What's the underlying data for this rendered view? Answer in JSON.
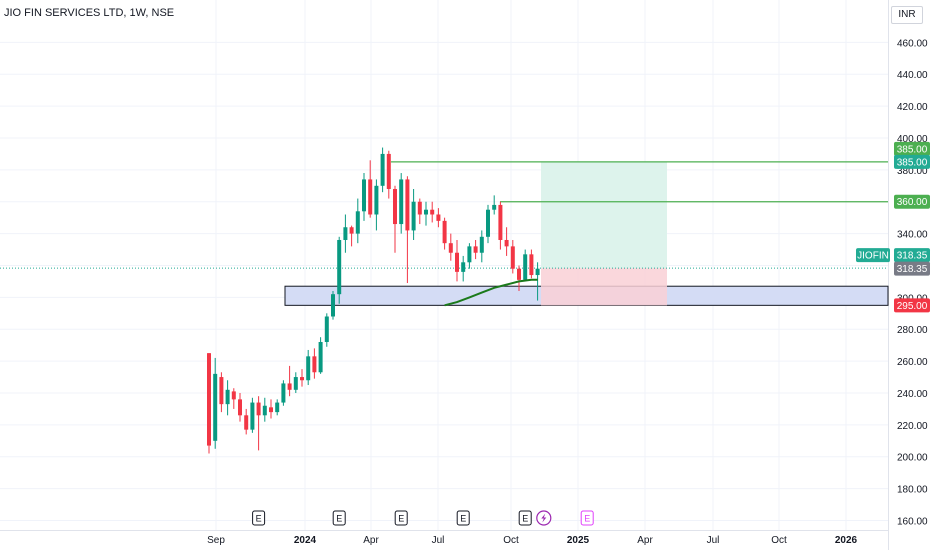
{
  "header": {
    "title": "JIO FIN SERVICES LTD, 1W, NSE",
    "currency": "INR"
  },
  "colors": {
    "up": "#089981",
    "down": "#f23645",
    "ma": "#1b7a1b",
    "level_line": "#4caf50",
    "target_zone": "#ddf3ec",
    "stop_zone": "#f9d0d6",
    "support_zone": "#d4dcf5",
    "last_price_bg": "#22ab94",
    "grid": "#f0f3fa",
    "text": "#131722",
    "earnings_past": "#131722",
    "earnings_future": "#e040fb",
    "dividend": "#9c27b0"
  },
  "chart_data": {
    "type": "candlestick",
    "title": "JIO FIN SERVICES LTD, 1W, NSE",
    "ylim": [
      155,
      475
    ],
    "y_ticks": [
      160,
      180,
      200,
      220,
      240,
      260,
      280,
      300,
      320,
      340,
      360,
      380,
      400,
      420,
      440,
      460
    ],
    "x_ticks": [
      "Sep",
      "2024",
      "Apr",
      "Jul",
      "Oct",
      "2025",
      "Apr",
      "Jul",
      "Oct",
      "2026"
    ],
    "grid": true,
    "series": [
      {
        "name": "JIOFIN",
        "ohlc": [
          [
            265,
            265,
            202,
            207
          ],
          [
            210,
            262,
            205,
            252
          ],
          [
            250,
            253,
            228,
            233
          ],
          [
            233,
            248,
            226,
            242
          ],
          [
            241,
            243,
            230,
            236
          ],
          [
            236,
            240,
            222,
            226
          ],
          [
            226,
            230,
            214,
            217
          ],
          [
            217,
            237,
            215,
            234
          ],
          [
            234,
            238,
            204,
            226
          ],
          [
            226,
            237,
            222,
            232
          ],
          [
            231,
            236,
            224,
            228
          ],
          [
            228,
            236,
            226,
            234
          ],
          [
            234,
            248,
            232,
            246
          ],
          [
            246,
            257,
            238,
            242
          ],
          [
            242,
            253,
            240,
            250
          ],
          [
            250,
            255,
            244,
            248
          ],
          [
            248,
            267,
            245,
            263
          ],
          [
            263,
            268,
            249,
            253
          ],
          [
            253,
            275,
            252,
            272
          ],
          [
            272,
            290,
            269,
            288
          ],
          [
            288,
            304,
            286,
            302
          ],
          [
            302,
            338,
            296,
            336
          ],
          [
            336,
            352,
            328,
            344
          ],
          [
            344,
            345,
            332,
            340
          ],
          [
            340,
            362,
            334,
            354
          ],
          [
            354,
            378,
            348,
            374
          ],
          [
            374,
            386,
            350,
            352
          ],
          [
            352,
            374,
            342,
            370
          ],
          [
            370,
            394,
            366,
            390
          ],
          [
            390,
            392,
            362,
            368
          ],
          [
            368,
            370,
            328,
            346
          ],
          [
            346,
            378,
            340,
            374
          ],
          [
            374,
            376,
            309,
            342
          ],
          [
            342,
            368,
            336,
            360
          ],
          [
            360,
            362,
            346,
            352
          ],
          [
            352,
            360,
            345,
            355
          ],
          [
            355,
            360,
            347,
            352
          ],
          [
            352,
            356,
            344,
            348
          ],
          [
            348,
            350,
            330,
            334
          ],
          [
            334,
            340,
            323,
            328
          ],
          [
            328,
            336,
            310,
            316
          ],
          [
            316,
            326,
            310,
            322
          ],
          [
            322,
            334,
            318,
            332
          ],
          [
            332,
            336,
            324,
            328
          ],
          [
            328,
            342,
            322,
            338
          ],
          [
            338,
            358,
            334,
            355
          ],
          [
            355,
            364,
            352,
            358
          ],
          [
            358,
            360,
            330,
            336
          ],
          [
            336,
            344,
            326,
            332
          ],
          [
            332,
            336,
            315,
            318
          ],
          [
            318,
            320,
            304,
            311
          ],
          [
            311,
            330,
            310,
            327
          ],
          [
            327,
            330,
            312,
            314
          ],
          [
            314,
            322,
            298,
            318
          ]
        ]
      }
    ],
    "moving_average": [
      [
        38,
        295
      ],
      [
        40,
        297
      ],
      [
        42,
        300
      ],
      [
        44,
        303
      ],
      [
        46,
        306
      ],
      [
        48,
        308
      ],
      [
        50,
        310
      ],
      [
        52,
        311
      ],
      [
        53,
        311
      ]
    ],
    "support_zone": {
      "low": 295,
      "high": 307
    },
    "levels": [
      385,
      360
    ],
    "position": {
      "entry": 318.35,
      "target": 385,
      "stop": 295
    },
    "price_labels": {
      "target_top": "385.00",
      "target_line": "385.00",
      "level_360": "360.00",
      "symbol": "JIOFIN",
      "last": "318.35",
      "last_ref": "318.35",
      "stop": "295.00"
    },
    "events": [
      {
        "type": "E",
        "index": 8
      },
      {
        "type": "E",
        "index": 21
      },
      {
        "type": "E",
        "index": 31
      },
      {
        "type": "E",
        "index": 41
      },
      {
        "type": "E",
        "index": 51
      },
      {
        "type": "dividend",
        "index": 54
      },
      {
        "type": "E",
        "index": 61
      }
    ]
  }
}
